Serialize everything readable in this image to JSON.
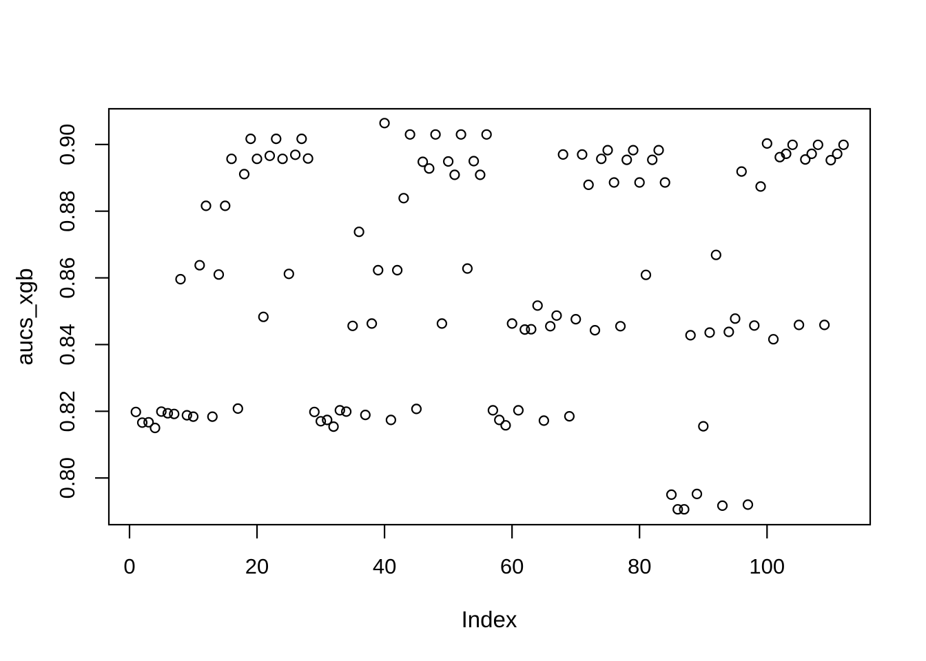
{
  "figure": {
    "background": "#ffffff",
    "foreground": "#000000"
  },
  "chart_data": {
    "type": "scatter",
    "title": "",
    "xlabel": "Index",
    "ylabel": "aucs_xgb",
    "grid": false,
    "legend": null,
    "xlim": [
      -3.24,
      116.18
    ],
    "ylim": [
      0.786,
      0.9107
    ],
    "x_axis": {
      "ticks": [
        0,
        20,
        40,
        60,
        80,
        100
      ],
      "labels": [
        "0",
        "20",
        "40",
        "60",
        "80",
        "100"
      ]
    },
    "y_axis": {
      "ticks": [
        0.8,
        0.82,
        0.84,
        0.86,
        0.88,
        0.9
      ],
      "labels": [
        "0.80",
        "0.82",
        "0.84",
        "0.86",
        "0.88",
        "0.90"
      ]
    },
    "marker": {
      "shape": "open-circle",
      "radius_px": 6.5,
      "stroke": "#000000",
      "stroke_width": 2.2,
      "fill": "none"
    },
    "series": [
      {
        "name": "aucs_xgb",
        "x": [
          1,
          2,
          3,
          4,
          5,
          6,
          7,
          8,
          9,
          10,
          11,
          12,
          13,
          14,
          15,
          16,
          17,
          18,
          19,
          20,
          21,
          22,
          23,
          24,
          25,
          26,
          27,
          28,
          29,
          30,
          31,
          32,
          33,
          34,
          35,
          36,
          37,
          38,
          39,
          40,
          41,
          42,
          43,
          44,
          45,
          46,
          47,
          48,
          49,
          50,
          51,
          52,
          53,
          54,
          55,
          56,
          57,
          58,
          59,
          60,
          61,
          62,
          63,
          64,
          65,
          66,
          67,
          68,
          69,
          70,
          71,
          72,
          73,
          74,
          75,
          76,
          77,
          78,
          79,
          80,
          81,
          82,
          83,
          84,
          85,
          86,
          87,
          88,
          89,
          90,
          91,
          92,
          93,
          94,
          95,
          96,
          97,
          98,
          99,
          100,
          101,
          102,
          103,
          104,
          105,
          106,
          107,
          108,
          109,
          110,
          111,
          112
        ],
        "y": [
          0.8198,
          0.8166,
          0.8167,
          0.815,
          0.8199,
          0.8194,
          0.8192,
          0.8596,
          0.8188,
          0.8184,
          0.8638,
          0.8816,
          0.8184,
          0.861,
          0.8816,
          0.8957,
          0.8208,
          0.8911,
          0.9017,
          0.8957,
          0.8483,
          0.8966,
          0.9017,
          0.8957,
          0.8612,
          0.8969,
          0.9017,
          0.8958,
          0.8198,
          0.817,
          0.8174,
          0.8154,
          0.8203,
          0.8199,
          0.8456,
          0.8738,
          0.8189,
          0.8463,
          0.8623,
          0.9064,
          0.8174,
          0.8623,
          0.8839,
          0.903,
          0.8207,
          0.8948,
          0.8928,
          0.903,
          0.8463,
          0.8949,
          0.8909,
          0.903,
          0.8628,
          0.895,
          0.8909,
          0.903,
          0.8203,
          0.8174,
          0.8158,
          0.8463,
          0.8203,
          0.8445,
          0.8446,
          0.8517,
          0.8172,
          0.8455,
          0.8487,
          0.897,
          0.8185,
          0.8476,
          0.897,
          0.8879,
          0.8443,
          0.8957,
          0.8983,
          0.8886,
          0.8455,
          0.8954,
          0.8983,
          0.8886,
          0.8609,
          0.8954,
          0.8983,
          0.8886,
          0.795,
          0.7906,
          0.7906,
          0.8428,
          0.7952,
          0.8155,
          0.8436,
          0.8669,
          0.7917,
          0.8438,
          0.8478,
          0.8919,
          0.792,
          0.8457,
          0.8874,
          0.9003,
          0.8416,
          0.8962,
          0.8972,
          0.8999,
          0.8459,
          0.8955,
          0.8972,
          0.8999,
          0.8459,
          0.8953,
          0.8972,
          0.8999
        ]
      }
    ]
  }
}
